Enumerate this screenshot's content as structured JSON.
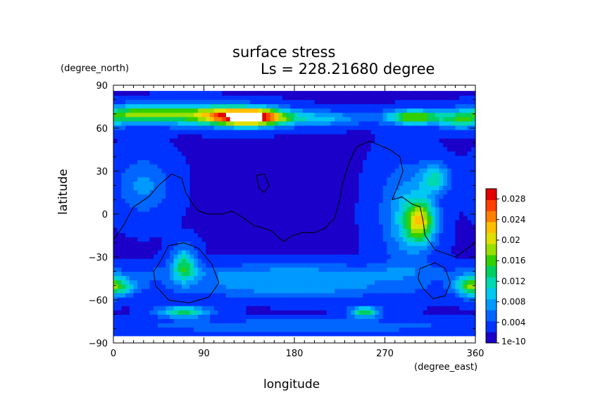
{
  "chart_data": {
    "type": "heatmap",
    "title": "surface stress",
    "subtitle": "Ls = 228.21680 degree",
    "xlabel": "longitude",
    "ylabel": "latitude",
    "xunit": "(degree_east)",
    "yunit": "(degree_north)",
    "xlim": [
      0,
      360
    ],
    "ylim": [
      -90,
      90
    ],
    "xticks": [
      {
        "value": 0,
        "label": "0"
      },
      {
        "value": 90,
        "label": "90"
      },
      {
        "value": 180,
        "label": "180"
      },
      {
        "value": 270,
        "label": "270"
      },
      {
        "value": 360,
        "label": "360"
      }
    ],
    "yticks": [
      {
        "value": 90,
        "label": "90"
      },
      {
        "value": 60,
        "label": "60"
      },
      {
        "value": 30,
        "label": "30"
      },
      {
        "value": 0,
        "label": "0"
      },
      {
        "value": -30,
        "label": "−30"
      },
      {
        "value": -60,
        "label": "−60"
      },
      {
        "value": -90,
        "label": "−90"
      }
    ],
    "grid": false,
    "colorbar": {
      "min": 0,
      "max": 0.03,
      "ticks": [
        {
          "value": 0,
          "label": "1e-10"
        },
        {
          "value": 0.004,
          "label": "0.004"
        },
        {
          "value": 0.008,
          "label": "0.008"
        },
        {
          "value": 0.012,
          "label": "0.012"
        },
        {
          "value": 0.016,
          "label": "0.016"
        },
        {
          "value": 0.02,
          "label": "0.02"
        },
        {
          "value": 0.024,
          "label": "0.024"
        },
        {
          "value": 0.028,
          "label": "0.028"
        }
      ],
      "colors": [
        "#1a00c8",
        "#0033ff",
        "#0066ff",
        "#0099ff",
        "#00c8f0",
        "#00d8b0",
        "#00d060",
        "#33d000",
        "#99e000",
        "#e0e000",
        "#ffc000",
        "#ff8000",
        "#ff4000",
        "#e00000"
      ]
    },
    "field": {
      "background": 0.002,
      "lat_range": [
        -85,
        85
      ],
      "saturated_above": 0.03,
      "features": [
        {
          "lon": 135,
          "lat": 68,
          "dlon": 38,
          "dlat": 6,
          "value": 0.03
        },
        {
          "lon": 75,
          "lat": 70,
          "dlon": 55,
          "dlat": 7,
          "value": 0.014
        },
        {
          "lon": 20,
          "lat": 70,
          "dlon": 30,
          "dlat": 6,
          "value": 0.011
        },
        {
          "lon": 300,
          "lat": 68,
          "dlon": 28,
          "dlat": 5,
          "value": 0.016
        },
        {
          "lon": 345,
          "lat": 66,
          "dlon": 20,
          "dlat": 6,
          "value": 0.01
        },
        {
          "lon": 210,
          "lat": 67,
          "dlon": 40,
          "dlat": 5,
          "value": 0.007
        },
        {
          "lon": 305,
          "lat": -5,
          "dlon": 15,
          "dlat": 15,
          "value": 0.016
        },
        {
          "lon": 320,
          "lat": 25,
          "dlon": 15,
          "dlat": 10,
          "value": 0.009
        },
        {
          "lon": 290,
          "lat": 0,
          "dlon": 25,
          "dlat": 35,
          "value": 0.006
        },
        {
          "lon": 70,
          "lat": -35,
          "dlon": 12,
          "dlat": 12,
          "value": 0.011
        },
        {
          "lon": 70,
          "lat": -68,
          "dlon": 25,
          "dlat": 4,
          "value": 0.012
        },
        {
          "lon": 250,
          "lat": -68,
          "dlon": 15,
          "dlat": 4,
          "value": 0.012
        },
        {
          "lon": 180,
          "lat": -50,
          "dlon": 120,
          "dlat": 8,
          "value": 0.006
        },
        {
          "lon": 5,
          "lat": -50,
          "dlon": 20,
          "dlat": 6,
          "value": 0.008
        },
        {
          "lon": 355,
          "lat": -50,
          "dlon": 15,
          "dlat": 8,
          "value": 0.009
        },
        {
          "lon": 30,
          "lat": 20,
          "dlon": 25,
          "dlat": 20,
          "value": 0.005
        },
        {
          "lon": 180,
          "lat": -40,
          "dlon": 180,
          "dlat": 6,
          "value": 0.004
        },
        {
          "lon": 180,
          "lat": -78,
          "dlon": 180,
          "dlat": 5,
          "value": 0.004
        }
      ]
    },
    "contours": [
      [
        [
          0,
          -18
        ],
        [
          10,
          -8
        ],
        [
          20,
          5
        ],
        [
          35,
          12
        ],
        [
          45,
          20
        ],
        [
          58,
          28
        ],
        [
          68,
          25
        ],
        [
          72,
          15
        ],
        [
          78,
          8
        ],
        [
          85,
          2
        ],
        [
          95,
          0
        ],
        [
          108,
          0
        ],
        [
          118,
          2
        ],
        [
          128,
          -2
        ],
        [
          140,
          -8
        ],
        [
          150,
          -10
        ],
        [
          158,
          -12
        ],
        [
          165,
          -17
        ],
        [
          170,
          -19
        ],
        [
          178,
          -15
        ],
        [
          188,
          -13
        ],
        [
          200,
          -13
        ],
        [
          210,
          -10
        ],
        [
          220,
          -3
        ],
        [
          225,
          10
        ],
        [
          228,
          22
        ],
        [
          235,
          37
        ],
        [
          242,
          47
        ],
        [
          255,
          51
        ],
        [
          265,
          48
        ],
        [
          275,
          45
        ],
        [
          285,
          40
        ],
        [
          288,
          30
        ],
        [
          282,
          18
        ],
        [
          277,
          10
        ],
        [
          287,
          12
        ],
        [
          297,
          7
        ],
        [
          305,
          5
        ],
        [
          308,
          -5
        ],
        [
          310,
          -15
        ],
        [
          320,
          -25
        ],
        [
          340,
          -30
        ],
        [
          360,
          -20
        ]
      ],
      [
        [
          142,
          27
        ],
        [
          150,
          28
        ],
        [
          155,
          20
        ],
        [
          150,
          15
        ],
        [
          145,
          18
        ],
        [
          142,
          27
        ]
      ],
      [
        [
          45,
          -35
        ],
        [
          55,
          -22
        ],
        [
          70,
          -20
        ],
        [
          85,
          -24
        ],
        [
          98,
          -35
        ],
        [
          105,
          -48
        ],
        [
          95,
          -58
        ],
        [
          75,
          -62
        ],
        [
          55,
          -60
        ],
        [
          42,
          -50
        ],
        [
          40,
          -40
        ],
        [
          45,
          -35
        ]
      ],
      [
        [
          305,
          -38
        ],
        [
          320,
          -34
        ],
        [
          330,
          -38
        ],
        [
          335,
          -48
        ],
        [
          330,
          -57
        ],
        [
          318,
          -59
        ],
        [
          308,
          -52
        ],
        [
          303,
          -45
        ],
        [
          305,
          -38
        ]
      ]
    ]
  }
}
